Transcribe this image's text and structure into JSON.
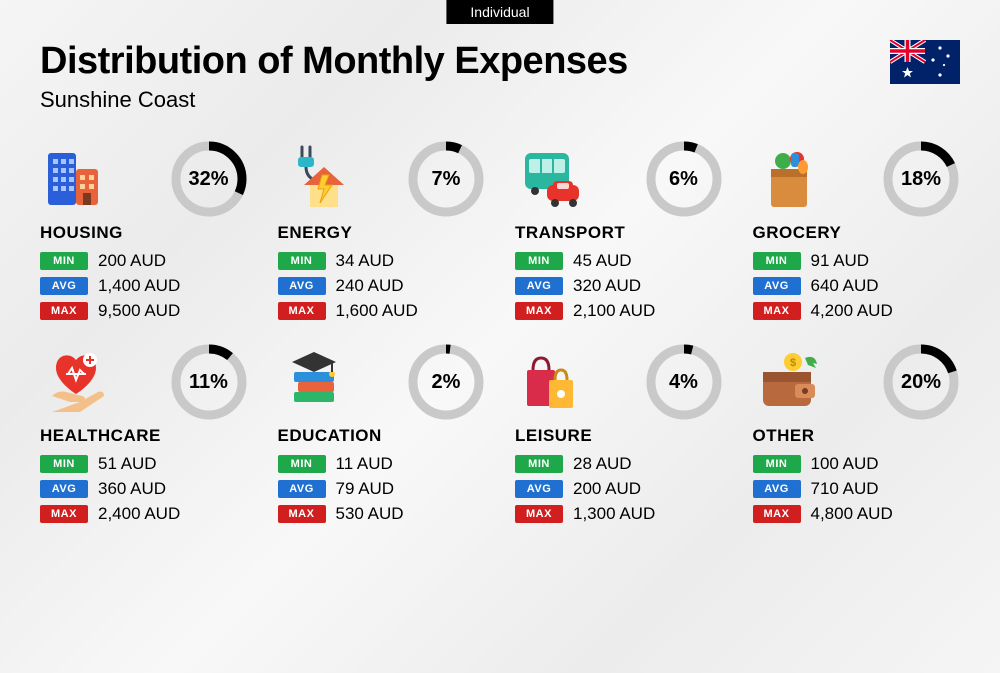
{
  "tag": "Individual",
  "title": "Distribution of Monthly Expenses",
  "subtitle": "Sunshine Coast",
  "currency": "AUD",
  "badge_labels": {
    "min": "MIN",
    "avg": "AVG",
    "max": "MAX"
  },
  "badge_colors": {
    "min": "#1fa84a",
    "avg": "#1f70d1",
    "max": "#d11f1f"
  },
  "donut": {
    "track_color": "#c9c9c9",
    "fill_color": "#000000",
    "stroke_width": 9,
    "radius": 33
  },
  "categories": [
    {
      "name": "HOUSING",
      "pct": 32,
      "min": "200",
      "avg": "1,400",
      "max": "9,500",
      "icon": "buildings"
    },
    {
      "name": "ENERGY",
      "pct": 7,
      "min": "34",
      "avg": "240",
      "max": "1,600",
      "icon": "energy-house"
    },
    {
      "name": "TRANSPORT",
      "pct": 6,
      "min": "45",
      "avg": "320",
      "max": "2,100",
      "icon": "bus-car"
    },
    {
      "name": "GROCERY",
      "pct": 18,
      "min": "91",
      "avg": "640",
      "max": "4,200",
      "icon": "grocery-bag"
    },
    {
      "name": "HEALTHCARE",
      "pct": 11,
      "min": "51",
      "avg": "360",
      "max": "2,400",
      "icon": "heart-hand"
    },
    {
      "name": "EDUCATION",
      "pct": 2,
      "min": "11",
      "avg": "79",
      "max": "530",
      "icon": "grad-books"
    },
    {
      "name": "LEISURE",
      "pct": 4,
      "min": "28",
      "avg": "200",
      "max": "1,300",
      "icon": "shopping-bags"
    },
    {
      "name": "OTHER",
      "pct": 20,
      "min": "100",
      "avg": "710",
      "max": "4,800",
      "icon": "wallet"
    }
  ],
  "flag": {
    "bg": "#012169",
    "red": "#E4002B",
    "white": "#ffffff"
  }
}
